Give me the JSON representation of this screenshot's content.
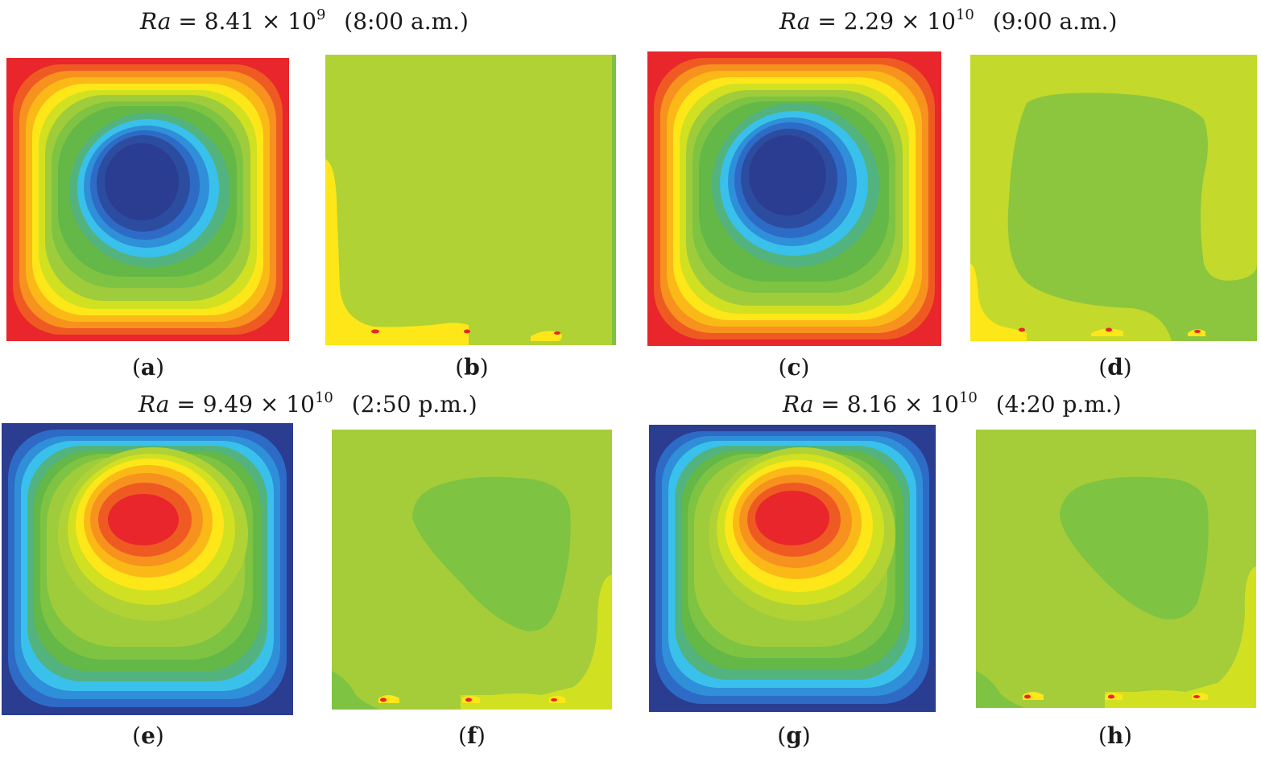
{
  "titles": [
    {
      "ra": "Ra",
      "eq": "= 8.41 × 10",
      "exp": "9",
      "time": "(8:00 a.m.)"
    },
    {
      "ra": "Ra",
      "eq": "= 2.29 × 10",
      "exp": "10",
      "time": "(9:00 a.m.)"
    },
    {
      "ra": "Ra",
      "eq": "= 9.49 × 10",
      "exp": "10",
      "time": "(2:50 p.m.)"
    },
    {
      "ra": "Ra",
      "eq": "= 8.16 × 10",
      "exp": "10",
      "time": "(4:20 p.m.)"
    }
  ],
  "captions": {
    "a": "a",
    "b": "b",
    "c": "c",
    "d": "d",
    "e": "e",
    "f": "f",
    "g": "g",
    "h": "h"
  },
  "colors": {
    "red": "#e8262b",
    "orange_red": "#ef5a23",
    "orange": "#f7921e",
    "yellow_orange": "#fbb917",
    "yellow": "#fde719",
    "yellow_green": "#d2e022",
    "lime": "#b0d235",
    "green": "#7ec342",
    "mid_green": "#63b847",
    "teal": "#52b37e",
    "cyan": "#39c1ec",
    "light_blue": "#2f8fd8",
    "blue": "#2d6bc6",
    "dark_blue": "#2c4d9f",
    "navy": "#2b3d91"
  }
}
